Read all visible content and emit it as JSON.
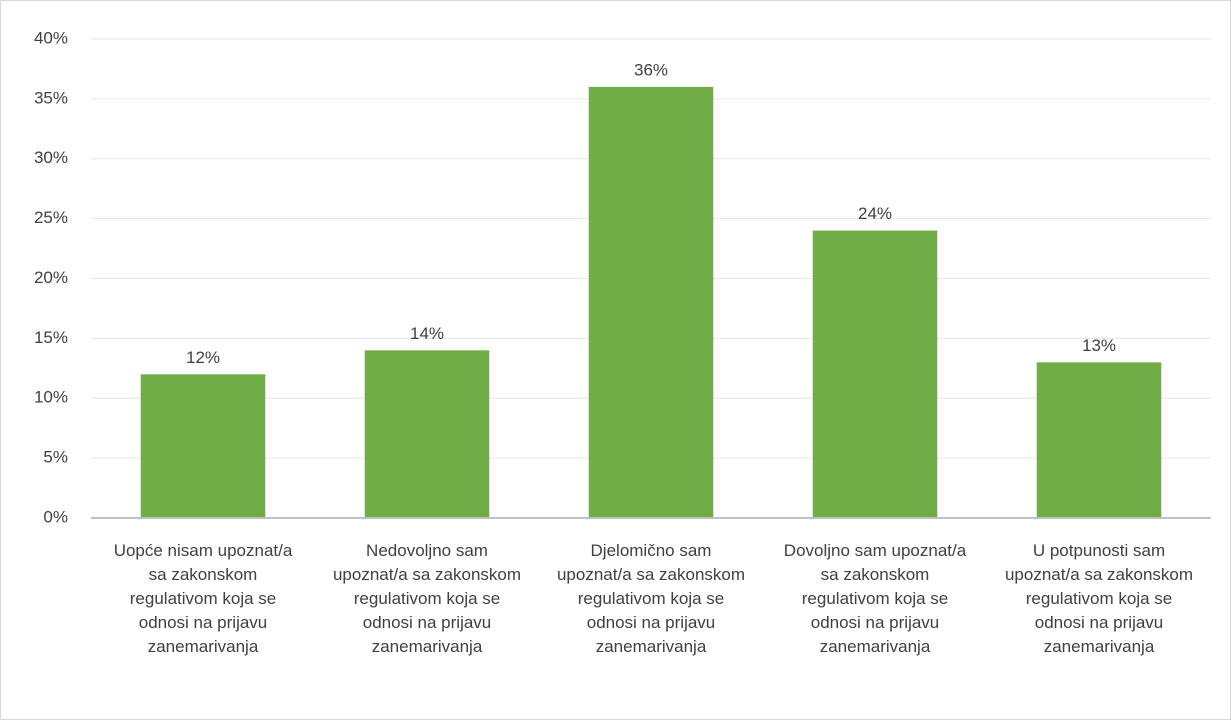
{
  "chart_data": {
    "type": "bar",
    "categories": [
      "Uopće nisam upoznat/a sa zakonskom regulativom koja se odnosi na prijavu zanemarivanja",
      "Nedovoljno sam upoznat/a sa zakonskom regulativom koja se odnosi na prijavu zanemarivanja",
      "Djelomično sam upoznat/a sa zakonskom regulativom koja se odnosi na prijavu zanemarivanja",
      "Dovoljno sam upoznat/a sa zakonskom regulativom koja se odnosi na prijavu zanemarivanja",
      "U potpunosti sam upoznat/a sa zakonskom regulativom koja se odnosi na prijavu zanemarivanja"
    ],
    "values": [
      12,
      14,
      36,
      24,
      13
    ],
    "value_labels": [
      "12%",
      "14%",
      "36%",
      "24%",
      "13%"
    ],
    "color": "#70ad47",
    "ylim": [
      0,
      40
    ],
    "yticks": [
      {
        "value": 0,
        "label": "0%"
      },
      {
        "value": 5,
        "label": "5%"
      },
      {
        "value": 10,
        "label": "10%"
      },
      {
        "value": 15,
        "label": "15%"
      },
      {
        "value": 20,
        "label": "20%"
      },
      {
        "value": 25,
        "label": "25%"
      },
      {
        "value": 30,
        "label": "30%"
      },
      {
        "value": 35,
        "label": "35%"
      },
      {
        "value": 40,
        "label": "40%"
      }
    ],
    "grid": true
  }
}
